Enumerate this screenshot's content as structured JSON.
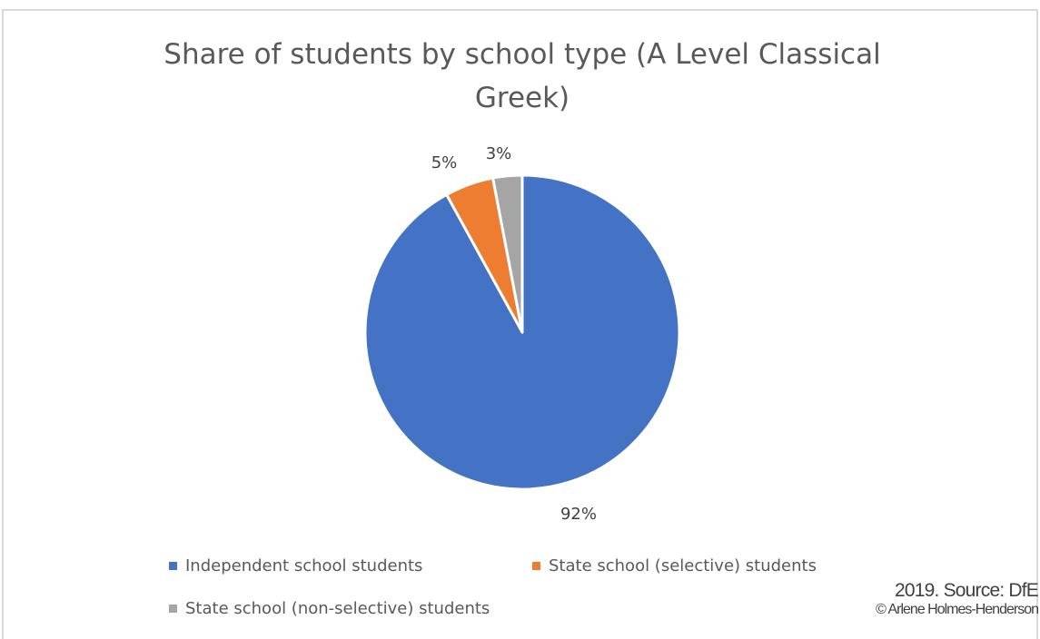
{
  "chart_data": {
    "type": "pie",
    "title": "Share of students by school type (A Level Classical Greek)",
    "slices": [
      {
        "label": "Independent school students",
        "value": 92,
        "display": "92%",
        "color": "#4472c4"
      },
      {
        "label": "State school (selective) students",
        "value": 5,
        "display": "5%",
        "color": "#ed7d31"
      },
      {
        "label": "State school (non-selective) students",
        "value": 3,
        "display": "3%",
        "color": "#a5a5a5"
      }
    ],
    "legend_position": "bottom"
  },
  "source_text": "2019. Source: DfE",
  "copyright_text": "© Arlene Holmes-Henderson"
}
